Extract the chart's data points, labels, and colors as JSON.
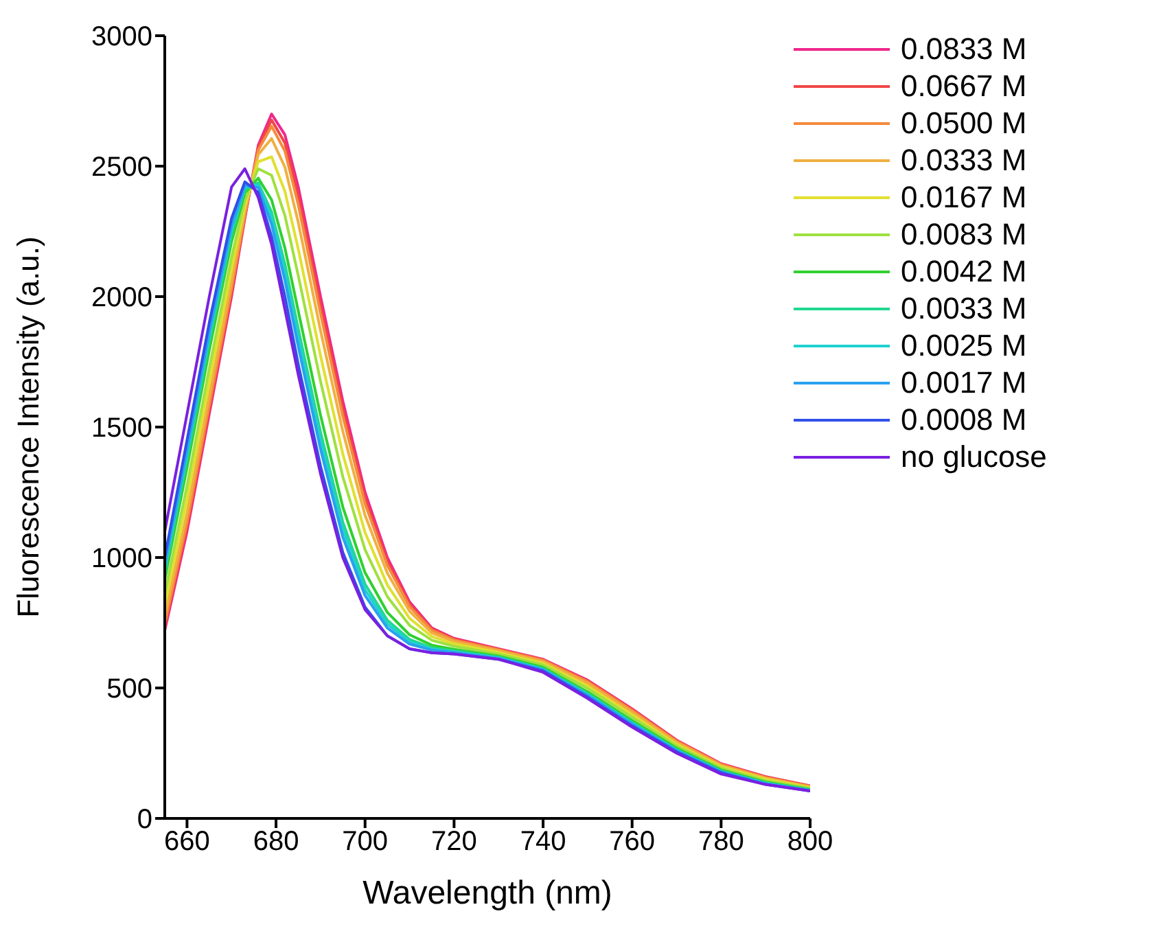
{
  "chart_data": {
    "type": "line",
    "xlabel": "Wavelength (nm)",
    "ylabel": "Fluorescence Intensity (a.u.)",
    "x": [
      655,
      660,
      665,
      670,
      673,
      676,
      679,
      682,
      685,
      690,
      695,
      700,
      705,
      710,
      715,
      720,
      730,
      740,
      750,
      760,
      770,
      780,
      790,
      800
    ],
    "xlim": [
      655,
      800
    ],
    "xticks": [
      660,
      680,
      700,
      720,
      740,
      760,
      780,
      800
    ],
    "ylim": [
      0,
      3000
    ],
    "yticks": [
      0,
      500,
      1000,
      1500,
      2000,
      2500,
      3000
    ],
    "grid": false,
    "legend": "top right",
    "marker": "none",
    "line_style": "solid",
    "series": [
      {
        "name": "0.0833 M",
        "color": "#f0288c",
        "values": [
          720,
          1100,
          1550,
          2000,
          2300,
          2580,
          2700,
          2620,
          2420,
          2000,
          1600,
          1250,
          1000,
          830,
          730,
          690,
          650,
          610,
          530,
          420,
          300,
          210,
          160,
          125
        ]
      },
      {
        "name": "0.0667 M",
        "color": "#f04646",
        "values": [
          734,
          1118,
          1568,
          2015,
          2307,
          2571,
          2677,
          2589,
          2386,
          1968,
          1571,
          1228,
          985,
          821,
          726,
          687,
          648,
          608,
          527,
          417,
          298,
          208,
          159,
          124
        ]
      },
      {
        "name": "0.0500 M",
        "color": "#f58a3c",
        "values": [
          748,
          1135,
          1585,
          2030,
          2314,
          2562,
          2653,
          2558,
          2352,
          1935,
          1542,
          1206,
          970,
          812,
          721,
          684,
          646,
          606,
          524,
          414,
          296,
          207,
          157,
          123
        ]
      },
      {
        "name": "0.0333 M",
        "color": "#f0b040",
        "values": [
          776,
          1170,
          1620,
          2060,
          2328,
          2544,
          2606,
          2496,
          2284,
          1870,
          1484,
          1162,
          940,
          794,
          711,
          678,
          642,
          601,
          517,
          407,
          291,
          203,
          154,
          121
        ]
      },
      {
        "name": "0.0167 M",
        "color": "#e0e030",
        "values": [
          818,
          1223,
          1673,
          2105,
          2349,
          2517,
          2536,
          2403,
          2182,
          1773,
          1397,
          1096,
          895,
          767,
          697,
          669,
          636,
          594,
          507,
          397,
          284,
          198,
          150,
          118
        ]
      },
      {
        "name": "0.0083 M",
        "color": "#a0e040",
        "values": [
          860,
          1275,
          1725,
          2150,
          2370,
          2490,
          2465,
          2310,
          2080,
          1675,
          1310,
          1030,
          850,
          740,
          683,
          660,
          630,
          588,
          498,
          388,
          278,
          193,
          145,
          115
        ]
      },
      {
        "name": "0.0042 M",
        "color": "#30d030",
        "values": [
          916,
          1345,
          1795,
          2210,
          2398,
          2454,
          2371,
          2186,
          1944,
          1545,
          1194,
          942,
          790,
          704,
          664,
          648,
          622,
          579,
          485,
          375,
          269,
          186,
          139,
          111
        ]
      },
      {
        "name": "0.0033 M",
        "color": "#20d890",
        "values": [
          944,
          1380,
          1830,
          2240,
          2412,
          2436,
          2324,
          2124,
          1876,
          1480,
          1136,
          898,
          760,
          686,
          654,
          642,
          618,
          574,
          478,
          368,
          264,
          182,
          136,
          109
        ]
      },
      {
        "name": "0.0025 M",
        "color": "#20d0d0",
        "values": [
          958,
          1398,
          1848,
          2255,
          2419,
          2427,
          2301,
          2093,
          1842,
          1448,
          1107,
          876,
          745,
          677,
          649,
          639,
          616,
          572,
          475,
          365,
          262,
          180,
          135,
          108
        ]
      },
      {
        "name": "0.0017 M",
        "color": "#2aa0f0",
        "values": [
          972,
          1415,
          1865,
          2270,
          2426,
          2418,
          2277,
          2062,
          1808,
          1415,
          1078,
          854,
          730,
          668,
          645,
          636,
          614,
          570,
          472,
          362,
          260,
          179,
          133,
          107
        ]
      },
      {
        "name": "0.0008 M",
        "color": "#3050e8",
        "values": [
          1000,
          1450,
          1900,
          2300,
          2440,
          2400,
          2230,
          2000,
          1740,
          1350,
          1020,
          810,
          700,
          650,
          635,
          630,
          610,
          565,
          465,
          355,
          255,
          175,
          130,
          105
        ]
      },
      {
        "name": "no glucose",
        "color": "#7a20e0",
        "values": [
          1100,
          1550,
          2000,
          2420,
          2490,
          2380,
          2200,
          1950,
          1700,
          1320,
          1000,
          800,
          700,
          650,
          635,
          630,
          610,
          560,
          460,
          350,
          250,
          170,
          130,
          105
        ]
      }
    ]
  }
}
